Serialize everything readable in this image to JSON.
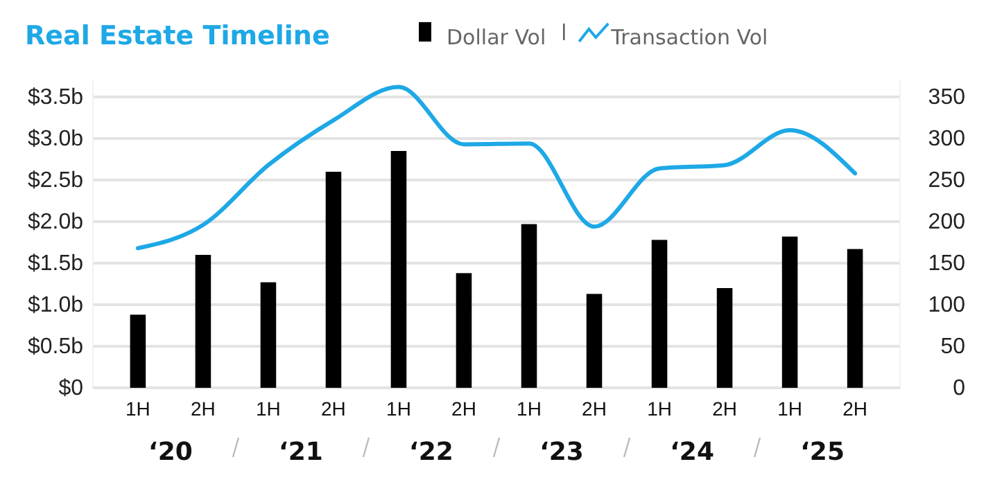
{
  "chart_data": {
    "type": "bar",
    "title": "Real Estate Timeline",
    "categories": [
      "1H",
      "2H",
      "1H",
      "2H",
      "1H",
      "2H",
      "1H",
      "2H",
      "1H",
      "2H",
      "1H",
      "2H"
    ],
    "annotations": [
      "‘20",
      "‘21",
      "‘22",
      "‘23",
      "‘24",
      "‘25"
    ],
    "series": [
      {
        "name": "Dollar Vol",
        "color": "#000000",
        "values": [
          0.88,
          1.6,
          1.27,
          2.6,
          2.85,
          1.38,
          1.97,
          1.13,
          1.78,
          1.2,
          1.82,
          1.67
        ]
      },
      {
        "name": "Transaction Vol",
        "type": "line",
        "axis": "y2",
        "color": "#1ea8e6",
        "values": [
          168,
          196,
          268,
          322,
          362,
          293,
          294,
          194,
          264,
          268,
          310,
          258
        ]
      }
    ],
    "ylim": [
      0,
      3.7
    ],
    "yticks": [
      {
        "value": 0,
        "label": "$0"
      },
      {
        "value": 0.5,
        "label": "$0.5b"
      },
      {
        "value": 1,
        "label": "$1.0b"
      },
      {
        "value": 1.5,
        "label": "$1.5b"
      },
      {
        "value": 2,
        "label": "$2.0b"
      },
      {
        "value": 2.5,
        "label": "$2.5b"
      },
      {
        "value": 3,
        "label": "$3.0b"
      },
      {
        "value": 3.5,
        "label": "$3.5b"
      }
    ],
    "y2lim": [
      0,
      370
    ],
    "y2ticks": [
      0,
      50,
      100,
      150,
      200,
      250,
      300,
      350
    ],
    "grid": "y",
    "legend": "top",
    "marker": "none",
    "line_style": "solid"
  }
}
